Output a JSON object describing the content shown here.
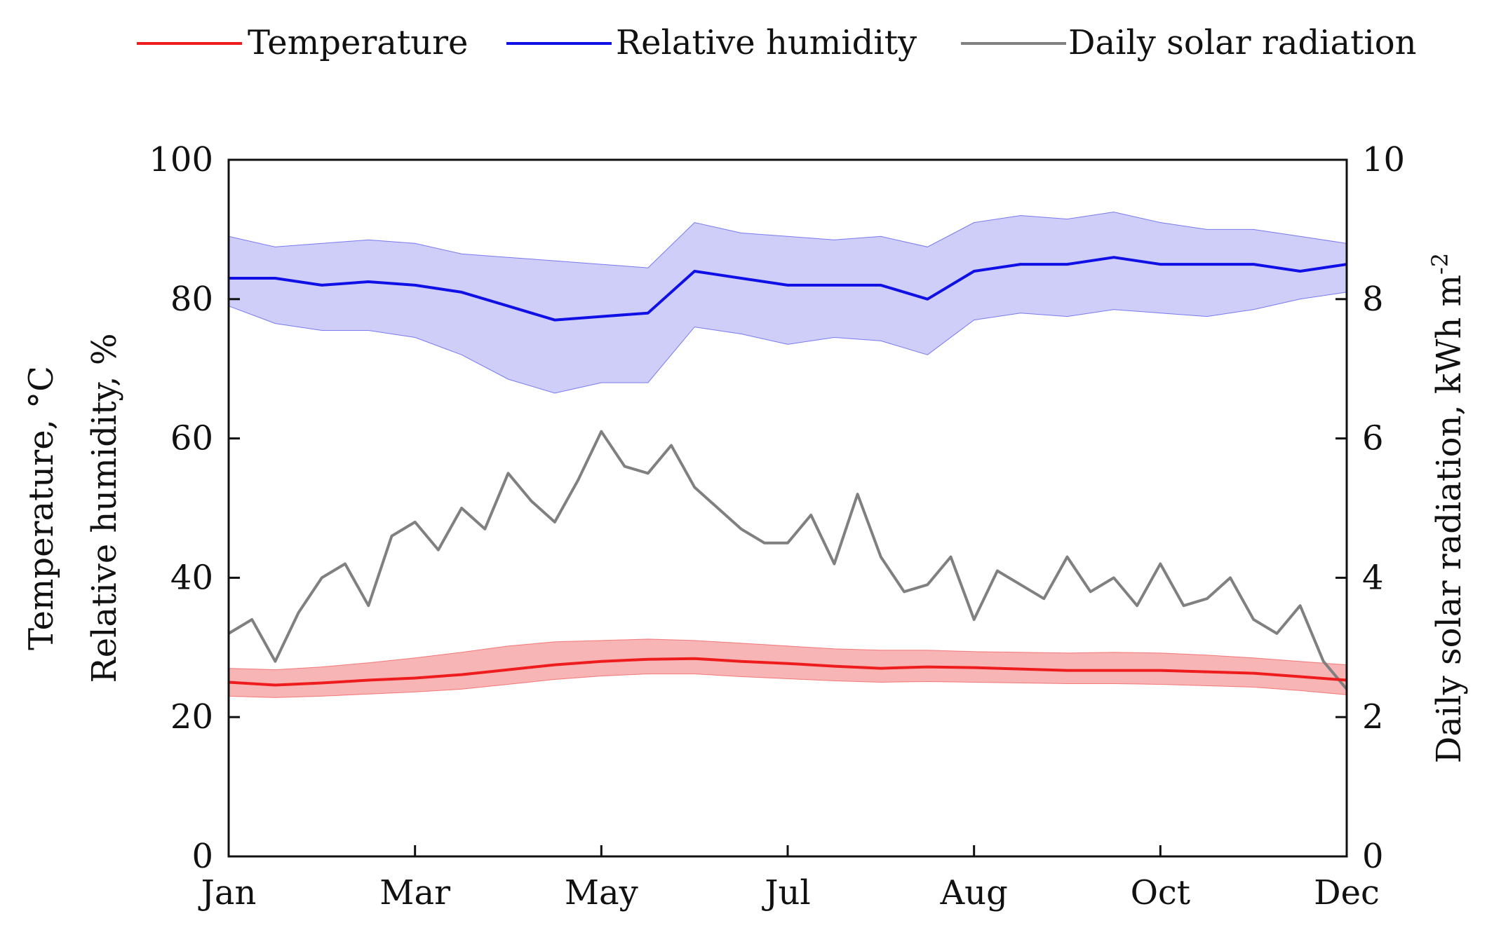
{
  "chart_data": {
    "type": "line",
    "title": "",
    "x_categories": [
      "Jan",
      "Mar",
      "May",
      "Jul",
      "Aug",
      "Oct",
      "Dec"
    ],
    "x_range": [
      0,
      12
    ],
    "left_axis": {
      "label_line1": "Temperature, °C",
      "label_line2": "Relative humidity, %",
      "range": [
        0,
        100
      ],
      "ticks": [
        0,
        20,
        40,
        60,
        80,
        100
      ],
      "tick_labels": [
        "0",
        "20",
        "40",
        "60",
        "80",
        "100"
      ]
    },
    "right_axis": {
      "label": "Daily solar radiation, kWh m",
      "label_sup": "-2",
      "range": [
        0,
        10
      ],
      "ticks": [
        0,
        2,
        4,
        6,
        8,
        10
      ],
      "tick_labels": [
        "0",
        "2",
        "4",
        "6",
        "8",
        "10"
      ]
    },
    "legend": {
      "position": "top",
      "entries": [
        {
          "name": "Temperature",
          "color": "#ee1c1c"
        },
        {
          "name": "Relative humidity",
          "color": "#1010e6"
        },
        {
          "name": "Daily solar radiation",
          "color": "#808080"
        }
      ]
    },
    "series": [
      {
        "name": "Temperature",
        "axis": "left",
        "color": "#ee1c1c",
        "band_color": "#f7a8a8",
        "x": [
          0,
          0.5,
          1,
          1.5,
          2,
          2.5,
          3,
          3.5,
          4,
          4.5,
          5,
          5.5,
          6,
          6.5,
          7,
          7.5,
          8,
          8.5,
          9,
          9.5,
          10,
          10.5,
          11,
          11.5,
          12
        ],
        "mean": [
          25,
          24.6,
          24.9,
          25.3,
          25.6,
          26.1,
          26.8,
          27.5,
          28,
          28.3,
          28.4,
          28,
          27.7,
          27.3,
          27,
          27.2,
          27.1,
          26.9,
          26.7,
          26.7,
          26.7,
          26.5,
          26.3,
          25.8,
          25.3
        ],
        "upper": [
          27,
          26.8,
          27.2,
          27.8,
          28.5,
          29.3,
          30.2,
          30.8,
          31,
          31.2,
          31,
          30.6,
          30.2,
          29.8,
          29.6,
          29.6,
          29.4,
          29.3,
          29.2,
          29.3,
          29.2,
          28.9,
          28.5,
          28,
          27.5
        ],
        "lower": [
          23,
          22.8,
          23,
          23.3,
          23.6,
          24,
          24.7,
          25.4,
          25.9,
          26.2,
          26.2,
          25.8,
          25.5,
          25.2,
          25,
          25.1,
          25,
          24.9,
          24.8,
          24.8,
          24.7,
          24.5,
          24.3,
          23.8,
          23.2
        ]
      },
      {
        "name": "Relative humidity",
        "axis": "left",
        "color": "#1010e6",
        "band_color": "#c6c6f8",
        "x": [
          0,
          0.5,
          1,
          1.5,
          2,
          2.5,
          3,
          3.5,
          4,
          4.5,
          5,
          5.5,
          6,
          6.5,
          7,
          7.5,
          8,
          8.5,
          9,
          9.5,
          10,
          10.5,
          11,
          11.5,
          12
        ],
        "mean": [
          83,
          83,
          82,
          82.5,
          82,
          81,
          79,
          77,
          77.5,
          78,
          84,
          83,
          82,
          82,
          82,
          80,
          84,
          85,
          85,
          86,
          85,
          85,
          85,
          84,
          85
        ],
        "upper": [
          89,
          87.5,
          88,
          88.5,
          88,
          86.5,
          86,
          85.5,
          85,
          84.5,
          91,
          89.5,
          89,
          88.5,
          89,
          87.5,
          91,
          92,
          91.5,
          92.5,
          91,
          90,
          90,
          89,
          88
        ],
        "lower": [
          79,
          76.5,
          75.5,
          75.5,
          74.5,
          72,
          68.5,
          66.5,
          68,
          68,
          76,
          75,
          73.5,
          74.5,
          74,
          72,
          77,
          78,
          77.5,
          78.5,
          78,
          77.5,
          78.5,
          80,
          81
        ]
      },
      {
        "name": "Daily solar radiation",
        "axis": "right",
        "color": "#808080",
        "x": [
          0,
          0.25,
          0.5,
          0.75,
          1,
          1.25,
          1.5,
          1.75,
          2,
          2.25,
          2.5,
          2.75,
          3,
          3.25,
          3.5,
          3.75,
          4,
          4.25,
          4.5,
          4.75,
          5,
          5.25,
          5.5,
          5.75,
          6,
          6.25,
          6.5,
          6.75,
          7,
          7.25,
          7.5,
          7.75,
          8,
          8.25,
          8.5,
          8.75,
          9,
          9.25,
          9.5,
          9.75,
          10,
          10.25,
          10.5,
          10.75,
          11,
          11.25,
          11.5,
          11.75,
          12
        ],
        "values": [
          3.2,
          3.4,
          2.8,
          3.5,
          4.0,
          4.2,
          3.6,
          4.6,
          4.8,
          4.4,
          5.0,
          4.7,
          5.5,
          5.1,
          4.8,
          5.4,
          6.1,
          5.6,
          5.5,
          5.9,
          5.3,
          5.0,
          4.7,
          4.5,
          4.5,
          4.9,
          4.2,
          5.2,
          4.3,
          3.8,
          3.9,
          4.3,
          3.4,
          4.1,
          3.9,
          3.7,
          4.3,
          3.8,
          4.0,
          3.6,
          4.2,
          3.6,
          3.7,
          4.0,
          3.4,
          3.2,
          3.6,
          2.8,
          2.4
        ]
      }
    ]
  }
}
